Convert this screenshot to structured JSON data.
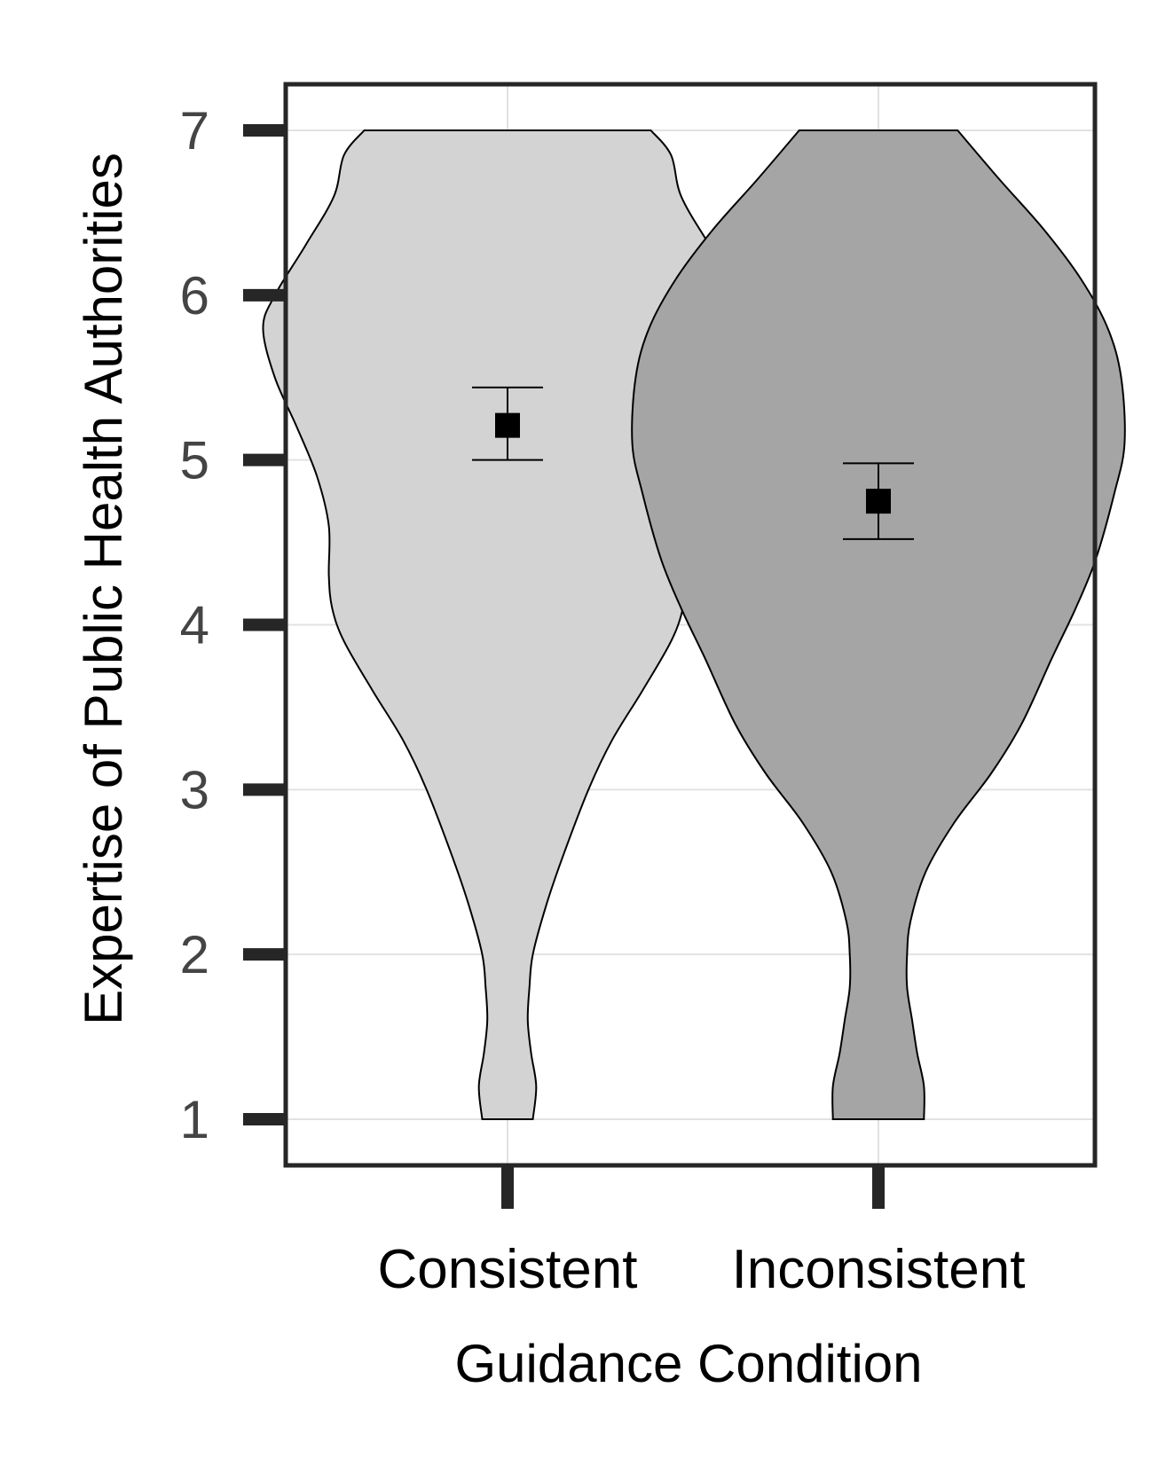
{
  "chart_data": {
    "type": "violin",
    "xlabel": "Guidance Condition",
    "ylabel": "Expertise of Public Health Authorities",
    "categories": [
      "Consistent",
      "Inconsistent"
    ],
    "ylim": [
      0.7,
      7.3
    ],
    "yticks": [
      1,
      2,
      3,
      4,
      5,
      6,
      7
    ],
    "grid": true,
    "series": [
      {
        "category": "Consistent",
        "fill": "#d3d3d3",
        "mean": 5.21,
        "ci_low": 5.0,
        "ci_high": 5.44,
        "density_profile": [
          [
            1.0,
            0.15
          ],
          [
            1.2,
            0.17
          ],
          [
            1.4,
            0.14
          ],
          [
            1.6,
            0.12
          ],
          [
            1.8,
            0.13
          ],
          [
            2.0,
            0.15
          ],
          [
            2.3,
            0.23
          ],
          [
            2.6,
            0.33
          ],
          [
            3.0,
            0.48
          ],
          [
            3.3,
            0.62
          ],
          [
            3.6,
            0.8
          ],
          [
            3.9,
            0.97
          ],
          [
            4.1,
            1.04
          ],
          [
            4.3,
            1.06
          ],
          [
            4.6,
            1.06
          ],
          [
            4.9,
            1.13
          ],
          [
            5.2,
            1.25
          ],
          [
            5.5,
            1.38
          ],
          [
            5.8,
            1.45
          ],
          [
            6.0,
            1.38
          ],
          [
            6.3,
            1.2
          ],
          [
            6.6,
            1.03
          ],
          [
            6.85,
            0.97
          ],
          [
            7.0,
            0.85
          ]
        ]
      },
      {
        "category": "Inconsistent",
        "fill": "#a5a5a5",
        "mean": 4.75,
        "ci_low": 4.52,
        "ci_high": 4.98,
        "density_profile": [
          [
            1.0,
            0.27
          ],
          [
            1.2,
            0.27
          ],
          [
            1.4,
            0.23
          ],
          [
            1.6,
            0.2
          ],
          [
            1.8,
            0.17
          ],
          [
            2.0,
            0.17
          ],
          [
            2.2,
            0.19
          ],
          [
            2.5,
            0.28
          ],
          [
            2.8,
            0.45
          ],
          [
            3.1,
            0.67
          ],
          [
            3.4,
            0.85
          ],
          [
            3.8,
            1.03
          ],
          [
            4.1,
            1.17
          ],
          [
            4.4,
            1.29
          ],
          [
            4.8,
            1.4
          ],
          [
            5.1,
            1.46
          ],
          [
            5.5,
            1.44
          ],
          [
            5.8,
            1.36
          ],
          [
            6.1,
            1.2
          ],
          [
            6.4,
            0.98
          ],
          [
            6.7,
            0.72
          ],
          [
            7.0,
            0.47
          ]
        ]
      }
    ]
  }
}
